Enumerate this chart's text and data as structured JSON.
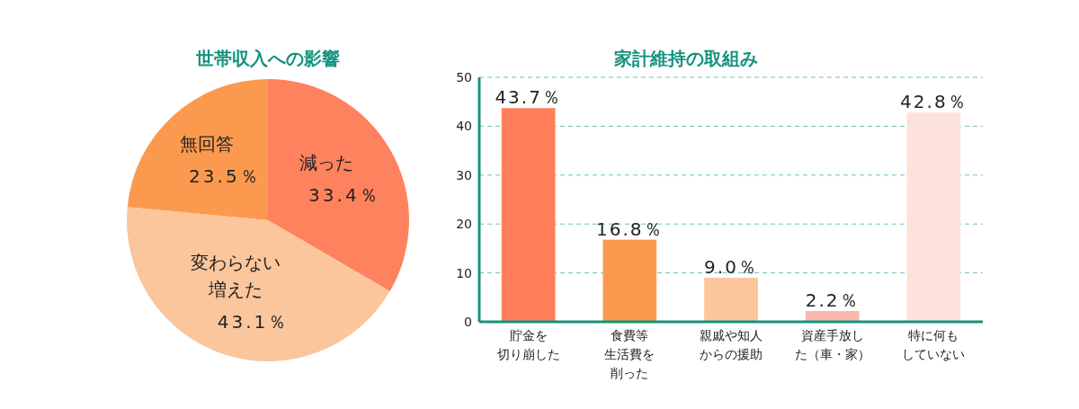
{
  "chart_data": [
    {
      "type": "pie",
      "title": "世帯収入への影響",
      "categories": [
        "減った",
        "変わらない増えた",
        "無回答"
      ],
      "values": [
        33.4,
        43.1,
        23.5
      ],
      "colors": [
        "#fe825d",
        "#fcc69d",
        "#fb9a4f"
      ],
      "value_labels": [
        "33.4％",
        "43.1％",
        "23.5％"
      ]
    },
    {
      "type": "bar",
      "title": "家計維持の取組み",
      "categories": [
        "貯金を切り崩した",
        "食費等生活費を削った",
        "親戚や知人からの援助",
        "資産手放した（車・家）",
        "特に何もしていない"
      ],
      "values": [
        43.7,
        16.8,
        9.0,
        2.2,
        42.8
      ],
      "colors": [
        "#fe7f5a",
        "#fb9a4f",
        "#fcc69d",
        "#f9b8ac",
        "#fde2dc"
      ],
      "value_labels": [
        "43.7％",
        "16.8％",
        "9.0％",
        "2.2％",
        "42.8％"
      ],
      "ylim": [
        0,
        50
      ],
      "yticks": [
        0,
        10,
        20,
        30,
        40,
        50
      ],
      "grid": "y"
    }
  ]
}
